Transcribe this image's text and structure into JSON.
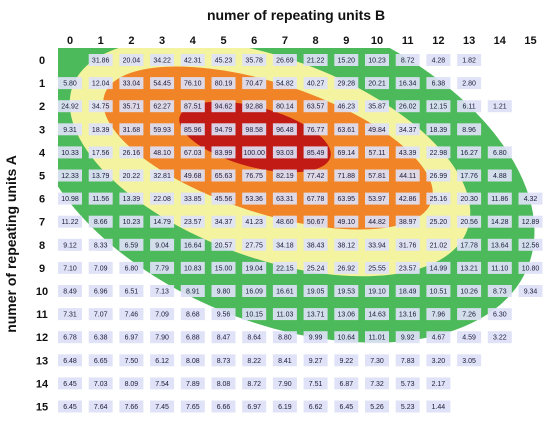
{
  "chart_data": {
    "type": "heatmap",
    "title": "numer of repeating units B",
    "xlabel": "numer of repeating units B",
    "ylabel": "numer of repeating units A",
    "x_categories": [
      "0",
      "1",
      "2",
      "3",
      "4",
      "5",
      "6",
      "7",
      "8",
      "9",
      "10",
      "11",
      "12",
      "13",
      "14",
      "15"
    ],
    "y_categories": [
      "0",
      "1",
      "2",
      "3",
      "4",
      "5",
      "6",
      "7",
      "8",
      "9",
      "10",
      "11",
      "12",
      "13",
      "14",
      "15"
    ],
    "values": [
      [
        null,
        31.86,
        20.04,
        34.22,
        42.31,
        45.23,
        35.78,
        26.69,
        21.22,
        15.2,
        10.23,
        8.72,
        4.28,
        1.82,
        null,
        null
      ],
      [
        5.8,
        12.04,
        33.04,
        54.45,
        76.1,
        80.19,
        70.47,
        54.82,
        40.27,
        29.28,
        20.21,
        16.34,
        6.38,
        2.8,
        null,
        null
      ],
      [
        24.92,
        34.75,
        35.71,
        62.27,
        87.51,
        94.62,
        92.88,
        80.14,
        63.57,
        46.23,
        35.87,
        26.02,
        12.15,
        6.11,
        1.21,
        null
      ],
      [
        9.31,
        18.39,
        31.68,
        59.93,
        85.96,
        94.79,
        98.58,
        96.48,
        76.77,
        63.61,
        49.84,
        34.37,
        18.39,
        8.96,
        null,
        null
      ],
      [
        10.33,
        17.56,
        26.16,
        48.1,
        67.03,
        83.99,
        100.0,
        93.03,
        85.49,
        69.14,
        57.11,
        43.39,
        22.98,
        16.27,
        6.8,
        null
      ],
      [
        12.33,
        13.79,
        20.22,
        32.81,
        49.68,
        65.63,
        76.75,
        82.19,
        77.42,
        71.88,
        57.81,
        44.11,
        26.99,
        17.76,
        4.88,
        null
      ],
      [
        10.98,
        11.56,
        13.39,
        22.08,
        33.85,
        45.56,
        53.36,
        63.31,
        67.78,
        63.95,
        53.97,
        42.86,
        25.16,
        20.3,
        11.86,
        4.32
      ],
      [
        11.22,
        8.66,
        10.23,
        14.79,
        23.57,
        34.37,
        41.23,
        48.6,
        50.67,
        49.1,
        44.82,
        38.97,
        25.2,
        20.56,
        14.28,
        12.89
      ],
      [
        9.12,
        8.33,
        6.59,
        9.04,
        16.64,
        20.57,
        27.75,
        34.18,
        38.43,
        38.12,
        33.94,
        31.76,
        21.02,
        17.78,
        13.64,
        12.56
      ],
      [
        7.1,
        7.09,
        6.8,
        7.79,
        10.83,
        15.0,
        19.04,
        22.15,
        25.24,
        26.92,
        25.55,
        23.57,
        14.99,
        13.21,
        11.1,
        10.8
      ],
      [
        8.49,
        6.96,
        6.51,
        7.13,
        8.91,
        9.8,
        16.09,
        16.61,
        19.05,
        19.53,
        19.1,
        18.49,
        10.51,
        10.26,
        8.73,
        9.34
      ],
      [
        7.31,
        7.07,
        7.46,
        7.09,
        8.68,
        9.56,
        10.15,
        11.03,
        13.71,
        13.06,
        14.63,
        13.16,
        7.96,
        7.26,
        6.3,
        null
      ],
      [
        6.78,
        6.38,
        6.97,
        7.9,
        6.88,
        8.47,
        8.64,
        8.8,
        9.99,
        10.64,
        11.01,
        9.92,
        4.67,
        4.59,
        3.22,
        null
      ],
      [
        6.48,
        6.65,
        7.5,
        6.12,
        8.08,
        8.73,
        8.22,
        8.41,
        9.27,
        9.22,
        7.3,
        7.83,
        3.2,
        3.05,
        null,
        null
      ],
      [
        6.45,
        7.03,
        8.09,
        7.54,
        7.89,
        8.08,
        8.72,
        7.9,
        7.51,
        6.87,
        7.32,
        5.73,
        2.17,
        null,
        null,
        null
      ],
      [
        6.45,
        7.64,
        7.66,
        7.45,
        7.65,
        6.66,
        6.97,
        6.19,
        6.62,
        6.45,
        5.26,
        5.23,
        1.44,
        null,
        null,
        null
      ]
    ],
    "contour_colors": [
      "#4cba5a",
      "#f4f4a0",
      "#f08426",
      "#c21a14"
    ],
    "cell_color": "#dde1f6",
    "legend": "none",
    "grid": false
  }
}
